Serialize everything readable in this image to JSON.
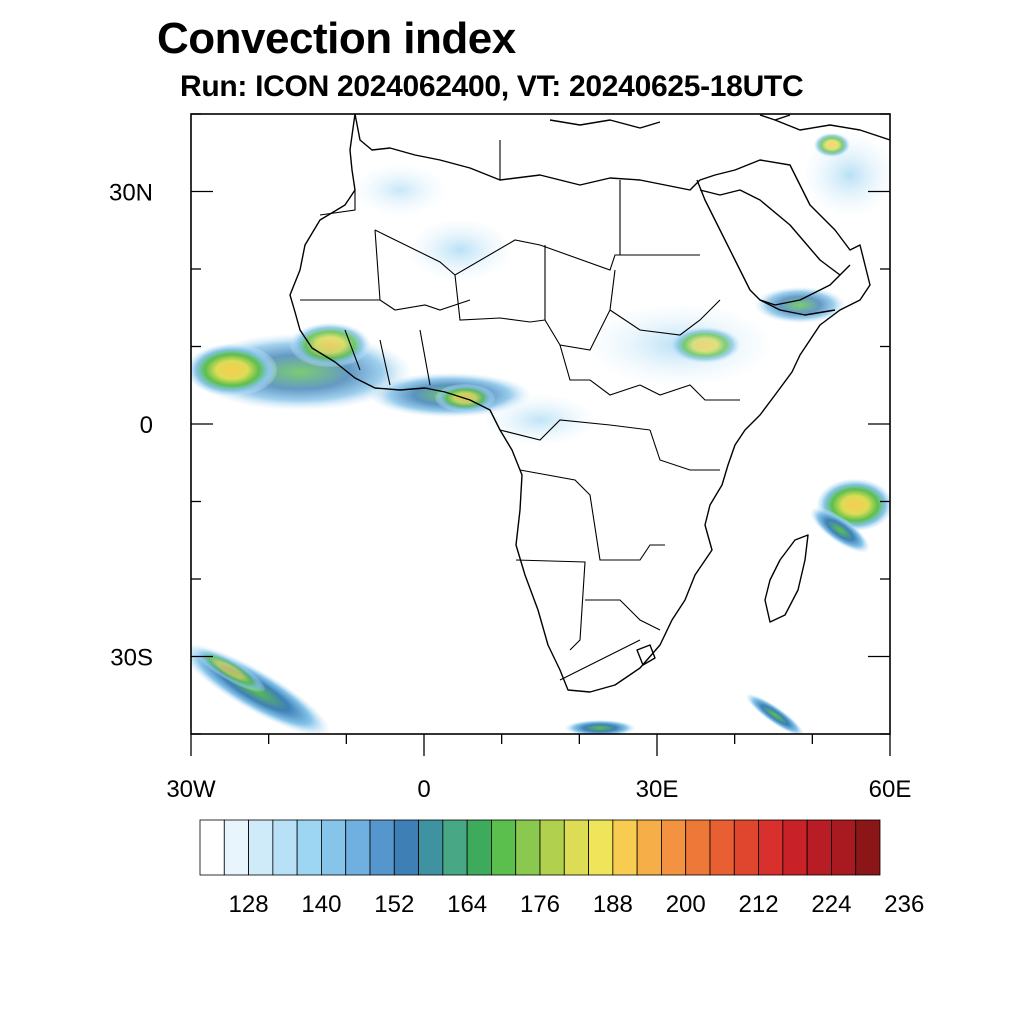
{
  "title": "Convection index",
  "subtitle": "Run: ICON 2024062400,  VT: 20240625-18UTC",
  "map": {
    "lon_range": [
      -30,
      60
    ],
    "lat_range": [
      -40,
      40
    ],
    "lat_labels": [
      {
        "lat": 30,
        "text": "30N"
      },
      {
        "lat": 0,
        "text": "0"
      },
      {
        "lat": -30,
        "text": "30S"
      }
    ],
    "lon_labels": [
      {
        "lon": -30,
        "text": "30W"
      },
      {
        "lon": 0,
        "text": "0"
      },
      {
        "lon": 30,
        "text": "30E"
      },
      {
        "lon": 60,
        "text": "60E"
      }
    ],
    "coast_color": "#000000"
  },
  "colorbar": {
    "colors": [
      "#ffffff",
      "#e8f5fc",
      "#cfeaf8",
      "#b8e0f6",
      "#9dd6f3",
      "#86c4ea",
      "#6fb0e0",
      "#5596cc",
      "#3e80b6",
      "#3f93a0",
      "#48a886",
      "#3daa5c",
      "#5bbf4e",
      "#8ac850",
      "#b0d04e",
      "#dcdc55",
      "#f0e45a",
      "#f8cc50",
      "#f6ae48",
      "#f39240",
      "#ee7838",
      "#e75f32",
      "#e0462e",
      "#d8302c",
      "#c82228",
      "#b81c24",
      "#a81a20",
      "#8a1618"
    ],
    "tick_labels": [
      "128",
      "140",
      "152",
      "164",
      "176",
      "188",
      "200",
      "212",
      "224",
      "236"
    ]
  }
}
